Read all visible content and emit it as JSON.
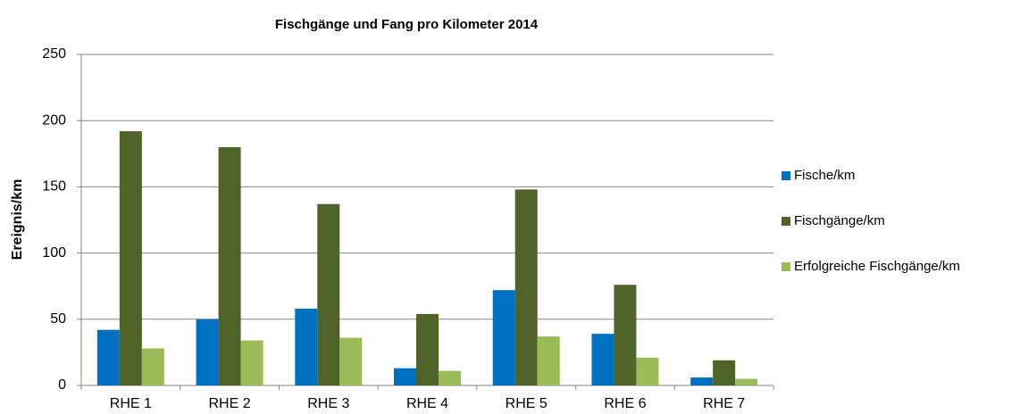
{
  "chart_data": {
    "type": "bar",
    "title": "Fischgänge und Fang pro Kilometer 2014",
    "y_label": "Ereignis/km",
    "categories": [
      "RHE 1",
      "RHE 2",
      "RHE 3",
      "RHE 4",
      "RHE 5",
      "RHE 6",
      "RHE 7"
    ],
    "series": [
      {
        "name": "Fische/km",
        "color": "#0070c0",
        "values": [
          42,
          50,
          58,
          13,
          72,
          39,
          6
        ]
      },
      {
        "name": "Fischgänge/km",
        "color": "#4f6228",
        "values": [
          192,
          180,
          137,
          54,
          148,
          76,
          19
        ]
      },
      {
        "name": "Erfolgreiche Fischgänge/km",
        "color": "#9bbb59",
        "values": [
          28,
          34,
          36,
          11,
          37,
          21,
          5
        ]
      }
    ],
    "ylim": [
      0,
      250
    ],
    "yticks": [
      0,
      50,
      100,
      150,
      200,
      250
    ],
    "grid": true,
    "legend": "right"
  }
}
